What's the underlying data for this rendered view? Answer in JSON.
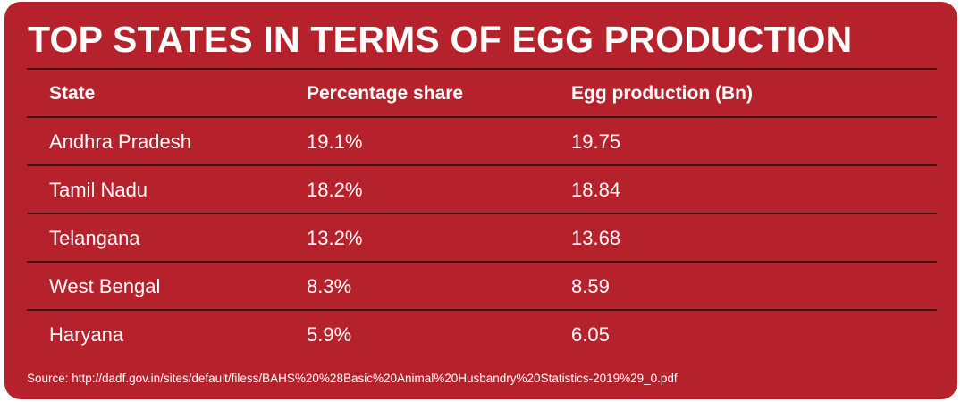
{
  "title": "TOP STATES IN TERMS OF EGG PRODUCTION",
  "chart_data": {
    "type": "table",
    "title": "TOP STATES IN TERMS OF EGG PRODUCTION",
    "columns": [
      "State",
      "Percentage share",
      "Egg production (Bn)"
    ],
    "rows": [
      [
        "Andhra Pradesh",
        "19.1%",
        "19.75"
      ],
      [
        "Tamil Nadu",
        "18.2%",
        "18.84"
      ],
      [
        "Telangana",
        "13.2%",
        "13.68"
      ],
      [
        "West Bengal",
        "8.3%",
        "8.59"
      ],
      [
        "Haryana",
        "5.9%",
        "6.05"
      ]
    ]
  },
  "source": "Source: http://dadf.gov.in/sites/default/filess/BAHS%20%28Basic%20Animal%20Husbandry%20Statistics-2019%29_0.pdf",
  "colors": {
    "background": "#b5222b",
    "text": "#ffffff",
    "divider": "#3d1518"
  }
}
